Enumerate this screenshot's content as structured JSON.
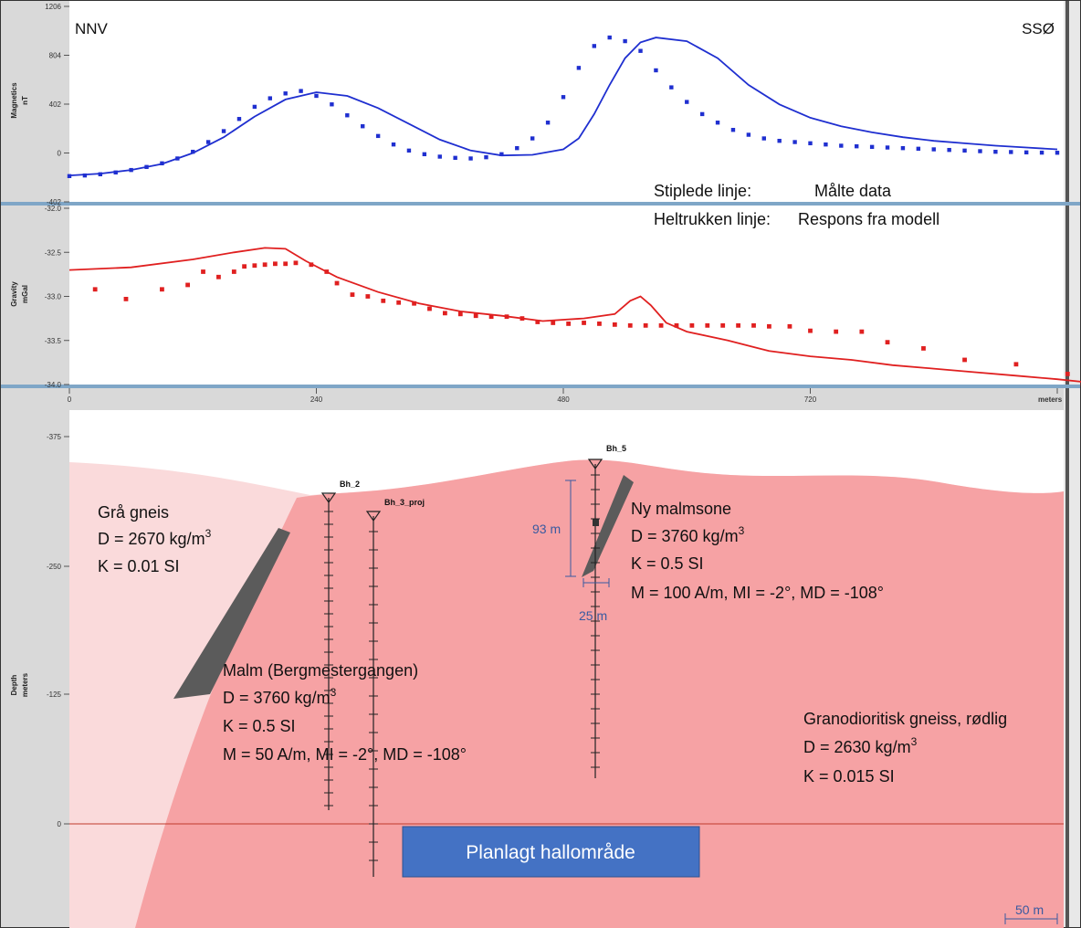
{
  "chart_data": [
    {
      "type": "scatter",
      "ylabel": "Magnetics",
      "yunit": "nT",
      "y_ticks": [
        "1206",
        "804",
        "402",
        "0",
        "-402"
      ],
      "ylim": [
        -402,
        1206
      ],
      "xlim": [
        0,
        960
      ],
      "colors": {
        "series": "#1f2fd0"
      },
      "series": [
        {
          "name": "Stiplede linje",
          "x": [
            0,
            15,
            30,
            45,
            60,
            75,
            90,
            105,
            120,
            135,
            150,
            165,
            180,
            195,
            210,
            225,
            240,
            255,
            270,
            285,
            300,
            315,
            330,
            345,
            360,
            375,
            390,
            405,
            420,
            435,
            450,
            465,
            480,
            495,
            510,
            525,
            540,
            555,
            570,
            585,
            600,
            615,
            630,
            645,
            660,
            675,
            690,
            705,
            720,
            735,
            750,
            765,
            780,
            795,
            810,
            825,
            840,
            855,
            870,
            885,
            900,
            915,
            930,
            945,
            960
          ],
          "y": [
            -190,
            -185,
            -175,
            -160,
            -140,
            -115,
            -85,
            -45,
            10,
            90,
            180,
            280,
            380,
            450,
            490,
            510,
            470,
            400,
            310,
            220,
            140,
            70,
            20,
            -10,
            -30,
            -40,
            -45,
            -35,
            -10,
            40,
            120,
            250,
            460,
            700,
            880,
            950,
            920,
            840,
            680,
            540,
            420,
            320,
            250,
            190,
            150,
            120,
            100,
            90,
            80,
            70,
            60,
            55,
            50,
            45,
            40,
            35,
            30,
            25,
            20,
            15,
            10,
            8,
            5,
            3,
            2
          ]
        },
        {
          "name": "Heltrukken linje",
          "x": [
            0,
            30,
            60,
            90,
            120,
            150,
            180,
            210,
            240,
            270,
            300,
            330,
            360,
            390,
            420,
            450,
            480,
            495,
            510,
            525,
            540,
            555,
            570,
            600,
            630,
            660,
            690,
            720,
            750,
            780,
            810,
            840,
            870,
            900,
            930,
            960
          ],
          "y": [
            -185,
            -170,
            -140,
            -90,
            0,
            130,
            300,
            440,
            500,
            470,
            370,
            240,
            110,
            20,
            -20,
            -15,
            30,
            120,
            320,
            560,
            780,
            910,
            950,
            920,
            780,
            560,
            400,
            290,
            220,
            170,
            130,
            100,
            80,
            60,
            45,
            30
          ]
        }
      ]
    },
    {
      "type": "scatter",
      "ylabel": "Gravity",
      "yunit": "mGal",
      "y_ticks": [
        "-32.0",
        "-32.5",
        "-33.0",
        "-33.5",
        "-34.0"
      ],
      "ylim": [
        -34.0,
        -32.0
      ],
      "xlim": [
        0,
        960
      ],
      "colors": {
        "series": "#e02020"
      },
      "series": [
        {
          "name": "Stiplede linje",
          "x": [
            25,
            55,
            90,
            115,
            130,
            145,
            160,
            170,
            180,
            190,
            200,
            210,
            220,
            235,
            250,
            260,
            275,
            290,
            305,
            320,
            335,
            350,
            365,
            380,
            395,
            410,
            425,
            440,
            455,
            470,
            485,
            500,
            515,
            530,
            545,
            560,
            575,
            590,
            605,
            620,
            635,
            650,
            665,
            680,
            700,
            720,
            745,
            770,
            795,
            830,
            870,
            920,
            970,
            985
          ],
          "y": [
            -32.92,
            -33.03,
            -32.92,
            -32.87,
            -32.72,
            -32.78,
            -32.72,
            -32.66,
            -32.65,
            -32.64,
            -32.63,
            -32.63,
            -32.62,
            -32.64,
            -32.72,
            -32.85,
            -32.98,
            -33.0,
            -33.05,
            -33.07,
            -33.08,
            -33.14,
            -33.19,
            -33.2,
            -33.22,
            -33.23,
            -33.23,
            -33.25,
            -33.29,
            -33.3,
            -33.31,
            -33.3,
            -33.31,
            -33.32,
            -33.33,
            -33.33,
            -33.33,
            -33.33,
            -33.33,
            -33.33,
            -33.33,
            -33.33,
            -33.33,
            -33.34,
            -33.34,
            -33.39,
            -33.4,
            -33.4,
            -33.52,
            -33.59,
            -33.72,
            -33.77,
            -33.88,
            -33.99
          ]
        },
        {
          "name": "Heltrukken linje",
          "x": [
            0,
            60,
            120,
            160,
            190,
            210,
            230,
            260,
            300,
            340,
            380,
            420,
            460,
            500,
            530,
            545,
            555,
            565,
            580,
            600,
            640,
            680,
            720,
            760,
            800,
            840,
            880,
            920,
            960,
            985
          ],
          "y": [
            -32.7,
            -32.67,
            -32.58,
            -32.5,
            -32.45,
            -32.46,
            -32.6,
            -32.78,
            -32.95,
            -33.08,
            -33.17,
            -33.22,
            -33.28,
            -33.25,
            -33.2,
            -33.05,
            -33.0,
            -33.1,
            -33.3,
            -33.4,
            -33.5,
            -33.62,
            -33.68,
            -33.72,
            -33.78,
            -33.82,
            -33.86,
            -33.9,
            -33.94,
            -33.97
          ]
        }
      ]
    },
    {
      "type": "area",
      "ylabel": "Depth",
      "yunit": "meters",
      "xlabel": "meters",
      "x_ticks": [
        "0",
        "240",
        "480",
        "720",
        "960"
      ],
      "y_ticks": [
        "-375",
        "-250",
        "-125",
        "0"
      ],
      "colors": {
        "gneis": "#fadadb",
        "granodiorite": "#f6a2a4",
        "ore": "#5b5b5b",
        "hall": "#4472c4"
      },
      "labels": {
        "gra_gneis": {
          "name": "Grå gneis",
          "d": "D = 2670 kg/m",
          "k": "K = 0.01 SI"
        },
        "malm": {
          "name": "Malm (Bergmestergangen)",
          "d": "D = 3760 kg/m",
          "k": "K = 0.5 SI",
          "m": "M = 50 A/m, MI = -2°, MD = -108°"
        },
        "ny_malmsone": {
          "name": "Ny malmsone",
          "d": "D = 3760 kg/m",
          "k": "K = 0.5 SI",
          "m": "M = 100 A/m, MI = -2°, MD = -108°"
        },
        "granodiorittisk": {
          "name": "Granodioritisk gneiss, rødlig",
          "d": "D = 2630 kg/m",
          "k": "K = 0.015 SI"
        },
        "sup3": "3"
      },
      "boreholes": [
        {
          "name": "Bh_2",
          "x": 250
        },
        {
          "name": "Bh_3_proj",
          "x": 295
        },
        {
          "name": "Bh_5",
          "x": 510
        }
      ],
      "dimensions": {
        "height_label": "93 m",
        "width_label": "25 m"
      },
      "hall_label": "Planlagt hallområde",
      "scale_bar_label": "50 m"
    }
  ],
  "directions": {
    "left": "NNV",
    "right": "SSØ"
  },
  "legend": {
    "measured_key": "Stiplede linje:",
    "measured_value": "Målte data",
    "model_key": "Heltrukken  linje:",
    "model_value": "Respons fra modell"
  }
}
